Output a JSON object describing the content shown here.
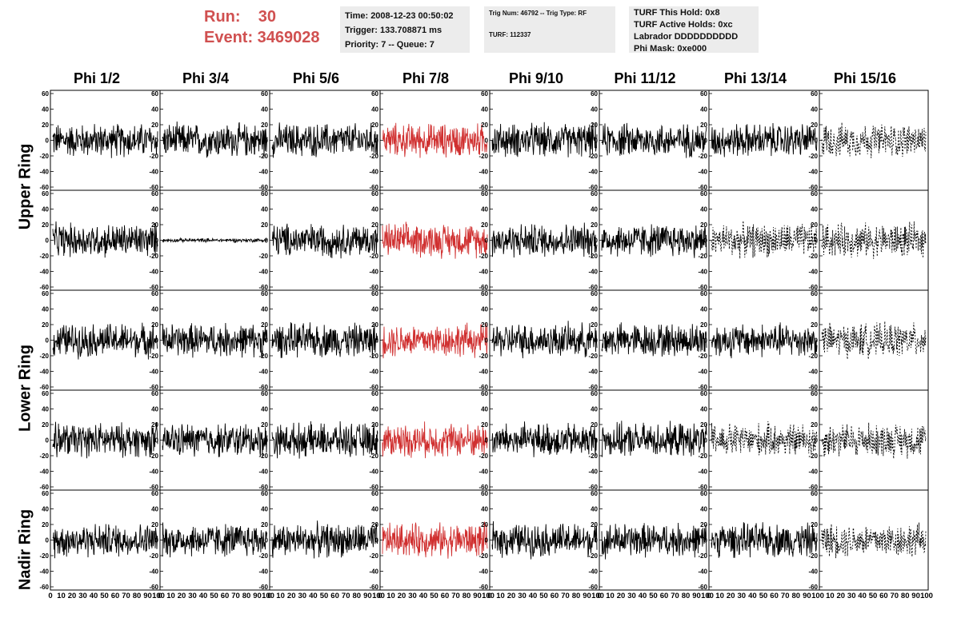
{
  "header": {
    "run_label": "Run:    30",
    "event_label": "Event: 3469028"
  },
  "info_box_1": {
    "time": "Time: 2008-12-23 00:50:02",
    "trigger": "Trigger: 133.708871 ms",
    "priority": "Priority: 7 -- Queue: 7"
  },
  "info_box_2": {
    "trig": "Trig Num: 46792 -- Trig Type: RF",
    "turf": "TURF: 112337"
  },
  "info_box_3": {
    "hold": "TURF This Hold: 0x8",
    "active": "TURF Active Holds: 0xc",
    "labrador": "Labrador DDDDDDDDDD",
    "phimask": "Phi Mask: 0xe000"
  },
  "columns": [
    "Phi 1/2",
    "Phi 3/4",
    "Phi 5/6",
    "Phi 7/8",
    "Phi 9/10",
    "Phi 11/12",
    "Phi 13/14",
    "Phi 15/16"
  ],
  "ring_labels": [
    "Upper Ring",
    "Lower Ring",
    "Nadir Ring"
  ],
  "y_ticks": [
    "60",
    "40",
    "20",
    "0",
    "-20",
    "-40",
    "-60"
  ],
  "x_ticks_black": [
    "0",
    "10",
    "20",
    "30",
    "40",
    "50",
    "60",
    "70",
    "80",
    "90",
    "100"
  ],
  "x_ticks_last": [
    "10",
    "20",
    "30",
    "40",
    "50",
    "60",
    "70",
    "80",
    "90",
    "100"
  ],
  "colors": {
    "header": "#d05050",
    "triggered_trace": "#d03030",
    "normal_trace": "#000000"
  },
  "highlight_column": 3,
  "dashed_panels": [
    [
      0,
      7
    ],
    [
      1,
      6
    ],
    [
      1,
      7
    ],
    [
      2,
      7
    ],
    [
      3,
      6
    ],
    [
      3,
      7
    ],
    [
      4,
      7
    ]
  ],
  "quiet_panels": [
    [
      1,
      1
    ]
  ]
}
